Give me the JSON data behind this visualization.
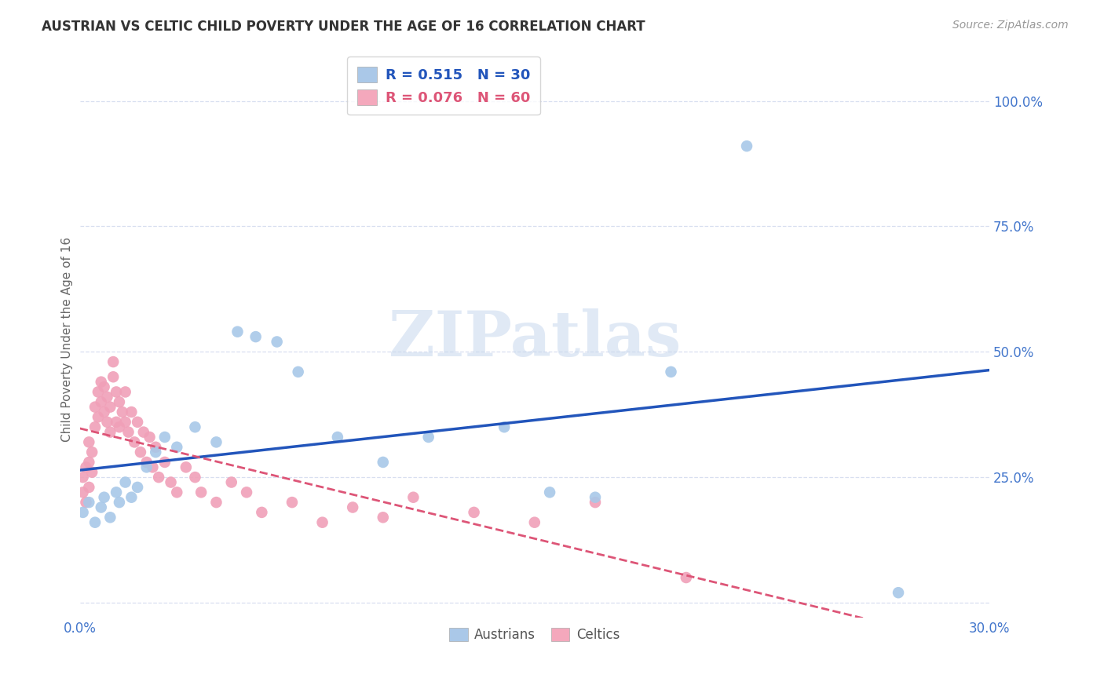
{
  "title": "AUSTRIAN VS CELTIC CHILD POVERTY UNDER THE AGE OF 16 CORRELATION CHART",
  "source": "Source: ZipAtlas.com",
  "ylabel": "Child Poverty Under the Age of 16",
  "xlim": [
    0.0,
    0.3
  ],
  "ylim": [
    -0.03,
    1.08
  ],
  "yticks": [
    0.0,
    0.25,
    0.5,
    0.75,
    1.0
  ],
  "ytick_labels_right": [
    "",
    "25.0%",
    "50.0%",
    "75.0%",
    "100.0%"
  ],
  "xticks": [
    0.0,
    0.05,
    0.1,
    0.15,
    0.2,
    0.25,
    0.3
  ],
  "xtick_labels": [
    "0.0%",
    "",
    "",
    "",
    "",
    "",
    "30.0%"
  ],
  "austrians_R": 0.515,
  "austrians_N": 30,
  "celtics_R": 0.076,
  "celtics_N": 60,
  "blue_scatter_color": "#a8c8e8",
  "pink_scatter_color": "#f0a0b8",
  "blue_line_color": "#2255bb",
  "pink_line_color": "#dd5577",
  "axis_label_color": "#4477cc",
  "grid_color": "#d8dff0",
  "background_color": "#ffffff",
  "austrians_x": [
    0.001,
    0.003,
    0.005,
    0.007,
    0.008,
    0.01,
    0.012,
    0.013,
    0.015,
    0.017,
    0.019,
    0.022,
    0.025,
    0.028,
    0.032,
    0.038,
    0.045,
    0.052,
    0.058,
    0.065,
    0.072,
    0.085,
    0.1,
    0.115,
    0.14,
    0.155,
    0.17,
    0.195,
    0.22,
    0.27
  ],
  "austrians_y": [
    0.18,
    0.2,
    0.16,
    0.19,
    0.21,
    0.17,
    0.22,
    0.2,
    0.24,
    0.21,
    0.23,
    0.27,
    0.3,
    0.33,
    0.31,
    0.35,
    0.32,
    0.54,
    0.53,
    0.52,
    0.46,
    0.33,
    0.28,
    0.33,
    0.35,
    0.22,
    0.21,
    0.46,
    0.91,
    0.02
  ],
  "celtics_x": [
    0.001,
    0.001,
    0.002,
    0.002,
    0.003,
    0.003,
    0.003,
    0.004,
    0.004,
    0.005,
    0.005,
    0.006,
    0.006,
    0.007,
    0.007,
    0.008,
    0.008,
    0.009,
    0.009,
    0.01,
    0.01,
    0.011,
    0.011,
    0.012,
    0.012,
    0.013,
    0.013,
    0.014,
    0.015,
    0.015,
    0.016,
    0.017,
    0.018,
    0.019,
    0.02,
    0.021,
    0.022,
    0.023,
    0.024,
    0.025,
    0.026,
    0.028,
    0.03,
    0.032,
    0.035,
    0.038,
    0.04,
    0.045,
    0.05,
    0.055,
    0.06,
    0.07,
    0.08,
    0.09,
    0.1,
    0.11,
    0.13,
    0.15,
    0.17,
    0.2
  ],
  "celtics_y": [
    0.22,
    0.25,
    0.2,
    0.27,
    0.23,
    0.28,
    0.32,
    0.26,
    0.3,
    0.35,
    0.39,
    0.42,
    0.37,
    0.44,
    0.4,
    0.38,
    0.43,
    0.36,
    0.41,
    0.34,
    0.39,
    0.45,
    0.48,
    0.42,
    0.36,
    0.4,
    0.35,
    0.38,
    0.42,
    0.36,
    0.34,
    0.38,
    0.32,
    0.36,
    0.3,
    0.34,
    0.28,
    0.33,
    0.27,
    0.31,
    0.25,
    0.28,
    0.24,
    0.22,
    0.27,
    0.25,
    0.22,
    0.2,
    0.24,
    0.22,
    0.18,
    0.2,
    0.16,
    0.19,
    0.17,
    0.21,
    0.18,
    0.16,
    0.2,
    0.05
  ],
  "watermark_text": "ZIPatlas",
  "watermark_color": "#c8d8ee",
  "legend_box_blue": "#aac8e8",
  "legend_box_pink": "#f4a8bc",
  "legend_text_blue": "#2255bb",
  "legend_text_pink": "#dd5577"
}
